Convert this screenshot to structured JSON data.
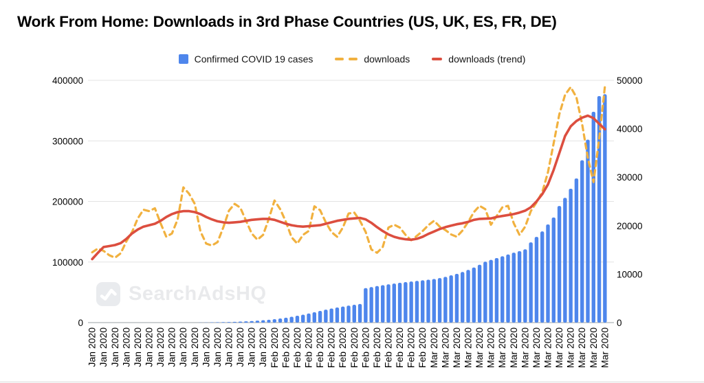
{
  "title": "Work From Home: Downloads in 3rd Phase Countries (US, UK, ES, FR, DE)",
  "watermark": {
    "text": "SearchAdsHQ"
  },
  "legend": {
    "position": "top-center",
    "items": [
      {
        "label": "Confirmed COVID 19 cases",
        "swatch": "square",
        "color": "#4e86ec"
      },
      {
        "label": "downloads",
        "swatch": "dashed-line",
        "color": "#f1b13f"
      },
      {
        "label": "downloads (trend)",
        "swatch": "line",
        "color": "#dc4e3f"
      }
    ]
  },
  "chart_data": {
    "type": "combo: bar (left axis) + dashed line + trend line (right axis)",
    "title": "Work From Home: Downloads in 3rd Phase Countries (US, UK, ES, FR, DE)",
    "grid": "horizontal gridlines every 100000 (left axis)",
    "legend_position": "top",
    "x_description": "91 daily points, Jan 1 2020 - Mar 31 2020; tick label shown under every 2nd bar, rotated 90deg, month-year only",
    "x_tick_every": 2,
    "x_tick_labels": [
      "Jan 2020",
      "Jan 2020",
      "Jan 2020",
      "Jan 2020",
      "Jan 2020",
      "Jan 2020",
      "Jan 2020",
      "Jan 2020",
      "Jan 2020",
      "Jan 2020",
      "Jan 2020",
      "Jan 2020",
      "Jan 2020",
      "Jan 2020",
      "Jan 2020",
      "Jan 2020",
      "Feb 2020",
      "Feb 2020",
      "Feb 2020",
      "Feb 2020",
      "Feb 2020",
      "Feb 2020",
      "Feb 2020",
      "Feb 2020",
      "Feb 2020",
      "Feb 2020",
      "Feb 2020",
      "Feb 2020",
      "Feb 2020",
      "Feb 2020",
      "Mar 2020",
      "Mar 2020",
      "Mar 2020",
      "Mar 2020",
      "Mar 2020",
      "Mar 2020",
      "Mar 2020",
      "Mar 2020",
      "Mar 2020",
      "Mar 2020",
      "Mar 2020",
      "Mar 2020",
      "Mar 2020",
      "Mar 2020",
      "Mar 2020",
      "Mar 2020"
    ],
    "left_axis": {
      "min": 0,
      "max": 400000,
      "ticks": [
        "0",
        "100000",
        "200000",
        "300000",
        "400000"
      ]
    },
    "right_axis": {
      "min": 0,
      "max": 50000,
      "ticks": [
        "0",
        "10000",
        "20000",
        "30000",
        "40000",
        "50000"
      ]
    },
    "series": [
      {
        "name": "Confirmed COVID 19 cases",
        "type": "bar",
        "axis": "left",
        "color": "#4e86ec",
        "values": [
          0,
          0,
          0,
          0,
          0,
          0,
          0,
          0,
          0,
          0,
          0,
          0,
          0,
          0,
          0,
          0,
          0,
          0,
          0,
          200,
          350,
          500,
          650,
          800,
          1000,
          1300,
          1700,
          2100,
          2600,
          3200,
          3900,
          4700,
          5700,
          6800,
          8100,
          9700,
          11400,
          13100,
          15000,
          17100,
          19300,
          21400,
          23300,
          25000,
          26500,
          28000,
          29400,
          30800,
          57000,
          58700,
          60300,
          61800,
          63200,
          64500,
          65700,
          66800,
          67800,
          68800,
          69800,
          70800,
          72000,
          73500,
          75500,
          78000,
          80500,
          83500,
          87000,
          91000,
          95500,
          100500,
          103500,
          106500,
          109500,
          112500,
          115500,
          118000,
          121000,
          132500,
          141500,
          150500,
          162000,
          173500,
          192500,
          206000,
          221000,
          238000,
          268000,
          302000,
          348000,
          374000,
          377000
        ]
      },
      {
        "name": "downloads",
        "type": "line-dashed",
        "axis": "right",
        "color": "#f1b13f",
        "values": [
          14500,
          15300,
          14800,
          13900,
          13400,
          14300,
          16800,
          18700,
          21500,
          23300,
          23000,
          23600,
          20500,
          17700,
          18400,
          21300,
          27900,
          26600,
          24500,
          18800,
          16300,
          15900,
          16600,
          19600,
          23100,
          24500,
          23700,
          21000,
          18400,
          17100,
          18100,
          21400,
          25200,
          23400,
          20800,
          17600,
          16300,
          18100,
          18900,
          24000,
          23200,
          20700,
          18700,
          17700,
          19600,
          22500,
          22700,
          21000,
          18700,
          15100,
          14400,
          15600,
          19600,
          20200,
          19600,
          18100,
          17000,
          17900,
          18900,
          20100,
          21000,
          19800,
          19100,
          18200,
          17700,
          19000,
          20800,
          22800,
          24100,
          23400,
          20200,
          22000,
          23800,
          24100,
          20500,
          18100,
          19800,
          23000,
          24800,
          26900,
          31000,
          37000,
          43000,
          47000,
          48600,
          46500,
          41000,
          34000,
          29000,
          38000,
          48800
        ]
      },
      {
        "name": "downloads (trend)",
        "type": "line",
        "axis": "right",
        "color": "#dc4e3f",
        "values": [
          13100,
          14400,
          15600,
          15800,
          16000,
          16400,
          17300,
          18400,
          19200,
          19800,
          20100,
          20400,
          21000,
          21800,
          22400,
          22800,
          23000,
          23000,
          22800,
          22400,
          21800,
          21300,
          20900,
          20700,
          20600,
          20700,
          20800,
          21000,
          21200,
          21300,
          21400,
          21400,
          21200,
          20800,
          20400,
          20100,
          19900,
          19800,
          19900,
          20000,
          20100,
          20400,
          20700,
          21000,
          21200,
          21400,
          21500,
          21600,
          21300,
          20600,
          19700,
          18900,
          18200,
          17700,
          17400,
          17200,
          17100,
          17300,
          17700,
          18300,
          18800,
          19300,
          19700,
          20000,
          20300,
          20500,
          20800,
          21200,
          21400,
          21450,
          21500,
          21800,
          22000,
          22200,
          22400,
          22700,
          23100,
          23800,
          25000,
          26500,
          28500,
          31500,
          35000,
          38500,
          40500,
          41600,
          42300,
          42700,
          42200,
          41000,
          39900
        ]
      }
    ],
    "colors": {
      "gridline": "#e3e3e3",
      "axis_line": "#9aa0a6",
      "tick_text": "#000000"
    }
  }
}
